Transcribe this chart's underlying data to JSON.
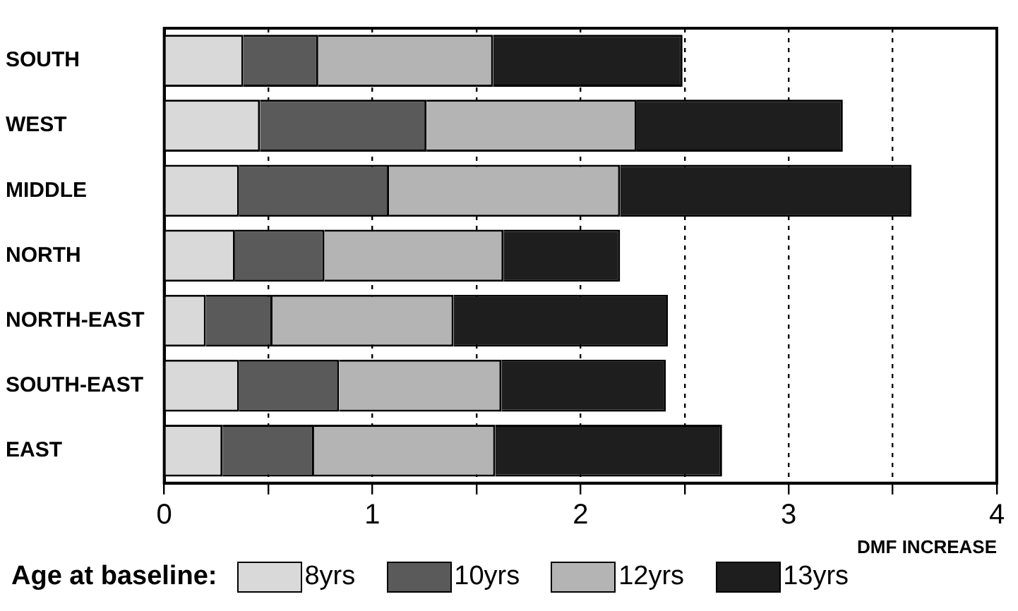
{
  "chart_data": {
    "type": "bar",
    "orientation": "horizontal",
    "stacked": true,
    "categories": [
      "SOUTH",
      "WEST",
      "MIDDLE",
      "NORTH",
      "NORTH-EAST",
      "SOUTH-EAST",
      "EAST"
    ],
    "series": [
      {
        "name": "8yrs",
        "color": "#d9d9d9",
        "values": [
          0.38,
          0.46,
          0.36,
          0.34,
          0.2,
          0.36,
          0.28
        ]
      },
      {
        "name": "10yrs",
        "color": "#5a5a5a",
        "values": [
          0.36,
          0.8,
          0.72,
          0.43,
          0.32,
          0.48,
          0.44
        ]
      },
      {
        "name": "12yrs",
        "color": "#b4b4b4",
        "values": [
          0.84,
          1.01,
          1.11,
          0.86,
          0.87,
          0.78,
          0.87
        ]
      },
      {
        "name": "13yrs",
        "color": "#1e1e1e",
        "values": [
          0.91,
          0.99,
          1.4,
          0.56,
          1.03,
          0.79,
          1.09
        ]
      }
    ],
    "xlim": [
      0,
      4
    ],
    "xticks": [
      0,
      {
        "value": 0.5,
        "label": null
      },
      1,
      {
        "value": 1.5,
        "label": null
      },
      2,
      {
        "value": 2.5,
        "label": null
      },
      3,
      {
        "value": 3.5,
        "label": null
      },
      4
    ],
    "xlabel": "DMF INCREASE",
    "legend_title": "Age at baseline:",
    "legend": "bottom",
    "grid": "x"
  }
}
